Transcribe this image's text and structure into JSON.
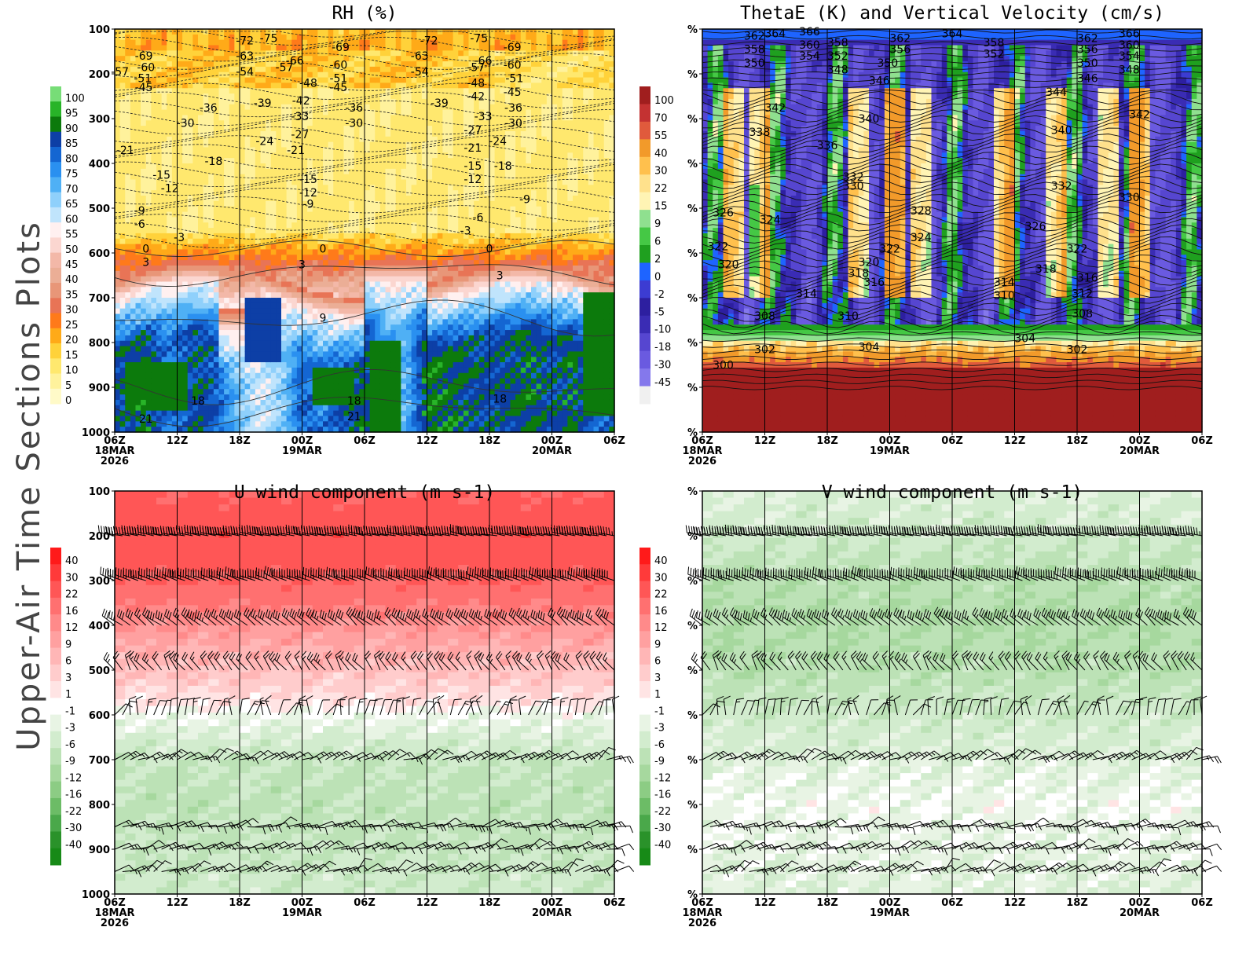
{
  "page_title": "Upper-Air Time Sections Plots",
  "chart_data": [
    {
      "id": "rh",
      "type": "heatmap",
      "title": "RH (%)",
      "shading_field": "Relative humidity (%)",
      "contour_field": "Temperature (C)",
      "y_tick_labels": [
        "100",
        "200",
        "300",
        "400",
        "500",
        "600",
        "700",
        "800",
        "900",
        "1000"
      ],
      "ylim": [
        100,
        1000
      ],
      "x_tick_labels": [
        {
          "hour": "06Z",
          "date": "18MAR",
          "year": "2026"
        },
        {
          "hour": "12Z",
          "date": "",
          "year": ""
        },
        {
          "hour": "18Z",
          "date": "",
          "year": ""
        },
        {
          "hour": "00Z",
          "date": "19MAR",
          "year": ""
        },
        {
          "hour": "06Z",
          "date": "",
          "year": ""
        },
        {
          "hour": "12Z",
          "date": "",
          "year": ""
        },
        {
          "hour": "18Z",
          "date": "",
          "year": ""
        },
        {
          "hour": "00Z",
          "date": "20MAR",
          "year": ""
        },
        {
          "hour": "06Z",
          "date": "",
          "year": ""
        }
      ],
      "xlim_hours": [
        0,
        48
      ],
      "colorbar_labels": [
        "100",
        "95",
        "90",
        "85",
        "80",
        "75",
        "70",
        "65",
        "60",
        "55",
        "50",
        "45",
        "40",
        "35",
        "30",
        "25",
        "20",
        "15",
        "10",
        "5",
        "0"
      ],
      "colorbar_colors": [
        "#77dd77",
        "#28b428",
        "#0c7a0c",
        "#0d3fa6",
        "#1466d2",
        "#2a90f0",
        "#4fb0f5",
        "#8fd0fb",
        "#c0e4fc",
        "#fff0f0",
        "#fbd6d0",
        "#f3b8a8",
        "#ebae96",
        "#e89678",
        "#e87456",
        "#ff7a1a",
        "#ffaa18",
        "#ffd23a",
        "#ffe86e",
        "#fff29c",
        "#fffac8"
      ],
      "temperature_contours": [
        -75,
        -72,
        -69,
        -66,
        -63,
        -60,
        -57,
        -54,
        -51,
        -48,
        -45,
        -42,
        -39,
        -36,
        -33,
        -30,
        -27,
        -24,
        -21,
        -18,
        -15,
        -12,
        -9,
        -6,
        -3,
        0,
        3,
        9,
        18,
        21
      ],
      "contour_labels": [
        {
          "text": "-69",
          "hour": 2.8,
          "p": 160
        },
        {
          "text": "-60",
          "hour": 3.0,
          "p": 185
        },
        {
          "text": "-57",
          "hour": 0.5,
          "p": 195
        },
        {
          "text": "-51",
          "hour": 2.7,
          "p": 210
        },
        {
          "text": "-45",
          "hour": 2.8,
          "p": 230
        },
        {
          "text": "-72",
          "hour": 12.5,
          "p": 125
        },
        {
          "text": "-75",
          "hour": 14.8,
          "p": 120
        },
        {
          "text": "-63",
          "hour": 12.5,
          "p": 160
        },
        {
          "text": "-54",
          "hour": 12.5,
          "p": 195
        },
        {
          "text": "-66",
          "hour": 17.3,
          "p": 170
        },
        {
          "text": "-57",
          "hour": 16.3,
          "p": 185
        },
        {
          "text": "-69",
          "hour": 21.7,
          "p": 140
        },
        {
          "text": "-60",
          "hour": 21.5,
          "p": 180
        },
        {
          "text": "-51",
          "hour": 21.5,
          "p": 210
        },
        {
          "text": "-45",
          "hour": 21.5,
          "p": 230
        },
        {
          "text": "-48",
          "hour": 18.6,
          "p": 220
        },
        {
          "text": "-42",
          "hour": 17.9,
          "p": 260
        },
        {
          "text": "-72",
          "hour": 30.2,
          "p": 125
        },
        {
          "text": "-63",
          "hour": 29.3,
          "p": 160
        },
        {
          "text": "-54",
          "hour": 29.3,
          "p": 195
        },
        {
          "text": "-75",
          "hour": 35.0,
          "p": 120
        },
        {
          "text": "-66",
          "hour": 35.4,
          "p": 170
        },
        {
          "text": "-57",
          "hour": 34.7,
          "p": 185
        },
        {
          "text": "-48",
          "hour": 34.7,
          "p": 220
        },
        {
          "text": "-42",
          "hour": 34.7,
          "p": 250
        },
        {
          "text": "-69",
          "hour": 38.2,
          "p": 140
        },
        {
          "text": "-60",
          "hour": 38.2,
          "p": 180
        },
        {
          "text": "-51",
          "hour": 38.4,
          "p": 210
        },
        {
          "text": "-45",
          "hour": 38.2,
          "p": 240
        },
        {
          "text": "-36",
          "hour": 9.0,
          "p": 275
        },
        {
          "text": "-30",
          "hour": 6.8,
          "p": 310
        },
        {
          "text": "-39",
          "hour": 14.2,
          "p": 265
        },
        {
          "text": "-33",
          "hour": 17.8,
          "p": 295
        },
        {
          "text": "-36",
          "hour": 23.0,
          "p": 275
        },
        {
          "text": "-30",
          "hour": 23.0,
          "p": 310
        },
        {
          "text": "-39",
          "hour": 31.2,
          "p": 265
        },
        {
          "text": "-33",
          "hour": 35.4,
          "p": 295
        },
        {
          "text": "-36",
          "hour": 38.3,
          "p": 275
        },
        {
          "text": "-30",
          "hour": 38.3,
          "p": 310
        },
        {
          "text": "-27",
          "hour": 34.4,
          "p": 325
        },
        {
          "text": "-24",
          "hour": 36.8,
          "p": 350
        },
        {
          "text": "-21",
          "hour": 34.4,
          "p": 365
        },
        {
          "text": "-18",
          "hour": 37.3,
          "p": 405
        },
        {
          "text": "-15",
          "hour": 34.4,
          "p": 405
        },
        {
          "text": "-12",
          "hour": 34.4,
          "p": 435
        },
        {
          "text": "-27",
          "hour": 17.8,
          "p": 335
        },
        {
          "text": "-24",
          "hour": 14.4,
          "p": 350
        },
        {
          "text": "-21",
          "hour": 17.4,
          "p": 370
        },
        {
          "text": "-15",
          "hour": 18.6,
          "p": 435
        },
        {
          "text": "-12",
          "hour": 18.6,
          "p": 465
        },
        {
          "text": "-9",
          "hour": 18.6,
          "p": 490
        },
        {
          "text": "-21",
          "hour": 1.0,
          "p": 370
        },
        {
          "text": "-18",
          "hour": 9.5,
          "p": 395
        },
        {
          "text": "-15",
          "hour": 4.5,
          "p": 425
        },
        {
          "text": "-12",
          "hour": 5.3,
          "p": 455
        },
        {
          "text": "-9",
          "hour": 2.4,
          "p": 505
        },
        {
          "text": "-6",
          "hour": 2.4,
          "p": 535
        },
        {
          "text": "-9",
          "hour": 39.4,
          "p": 480
        },
        {
          "text": "-6",
          "hour": 34.9,
          "p": 520
        },
        {
          "text": "-3",
          "hour": 33.7,
          "p": 550
        },
        {
          "text": "-3",
          "hour": 6.2,
          "p": 565
        },
        {
          "text": "0",
          "hour": 3.0,
          "p": 590
        },
        {
          "text": "0",
          "hour": 20.0,
          "p": 590
        },
        {
          "text": "0",
          "hour": 36.0,
          "p": 590
        },
        {
          "text": "3",
          "hour": 3.0,
          "p": 620
        },
        {
          "text": "3",
          "hour": 18.0,
          "p": 625
        },
        {
          "text": "3",
          "hour": 37.0,
          "p": 650
        },
        {
          "text": "9",
          "hour": 20.0,
          "p": 745
        },
        {
          "text": "18",
          "hour": 8.0,
          "p": 930
        },
        {
          "text": "18",
          "hour": 23.0,
          "p": 930
        },
        {
          "text": "21",
          "hour": 3.0,
          "p": 970
        },
        {
          "text": "21",
          "hour": 23.0,
          "p": 965
        },
        {
          "text": "18",
          "hour": 37.0,
          "p": 925
        }
      ]
    },
    {
      "id": "thetae",
      "type": "heatmap",
      "title": "ThetaE (K) and Vertical Velocity (cm/s)",
      "shading_field": "Vertical velocity (cm/s)",
      "contour_field": "Equivalent potential temperature (K)",
      "y_tick_labels": [
        "%",
        "%",
        "%",
        "%",
        "%",
        "%",
        "%",
        "%",
        "%",
        "%"
      ],
      "colorbar_labels": [
        "100",
        "70",
        "55",
        "40",
        "30",
        "22",
        "15",
        "9",
        "6",
        "2",
        "0",
        "-2",
        "-5",
        "-10",
        "-18",
        "-30",
        "-45"
      ],
      "colorbar_colors": [
        "#a01e1e",
        "#c43232",
        "#e05a3c",
        "#f29a2a",
        "#ffc04d",
        "#ffe18c",
        "#fff4b4",
        "#8fe08f",
        "#45c845",
        "#1fa01f",
        "#1e64ff",
        "#3c3cd2",
        "#2d1fa0",
        "#3a2cb4",
        "#5646d0",
        "#6a5ae0",
        "#8478ec",
        "#f0f0f0"
      ],
      "thetae_contours": [
        300,
        302,
        304,
        308,
        310,
        312,
        314,
        316,
        318,
        320,
        322,
        324,
        326,
        328,
        330,
        332,
        336,
        338,
        340,
        342,
        344,
        346,
        348,
        350,
        352,
        354,
        356,
        358,
        360,
        362,
        364,
        366
      ],
      "contour_labels": [
        {
          "text": "362",
          "hour": 5.0,
          "p": 115
        },
        {
          "text": "358",
          "hour": 5.0,
          "p": 145
        },
        {
          "text": "350",
          "hour": 5.0,
          "p": 175
        },
        {
          "text": "364",
          "hour": 7.0,
          "p": 110
        },
        {
          "text": "366",
          "hour": 10.3,
          "p": 105
        },
        {
          "text": "360",
          "hour": 10.3,
          "p": 135
        },
        {
          "text": "354",
          "hour": 10.3,
          "p": 160
        },
        {
          "text": "358",
          "hour": 13.0,
          "p": 130
        },
        {
          "text": "352",
          "hour": 13.0,
          "p": 160
        },
        {
          "text": "348",
          "hour": 13.0,
          "p": 190
        },
        {
          "text": "346",
          "hour": 17.0,
          "p": 215
        },
        {
          "text": "350",
          "hour": 17.8,
          "p": 175
        },
        {
          "text": "362",
          "hour": 19.0,
          "p": 120
        },
        {
          "text": "356",
          "hour": 19.0,
          "p": 145
        },
        {
          "text": "364",
          "hour": 24.0,
          "p": 110
        },
        {
          "text": "358",
          "hour": 28.0,
          "p": 130
        },
        {
          "text": "352",
          "hour": 28.0,
          "p": 155
        },
        {
          "text": "362",
          "hour": 37.0,
          "p": 120
        },
        {
          "text": "356",
          "hour": 37.0,
          "p": 145
        },
        {
          "text": "350",
          "hour": 37.0,
          "p": 175
        },
        {
          "text": "366",
          "hour": 41.0,
          "p": 110
        },
        {
          "text": "360",
          "hour": 41.0,
          "p": 135
        },
        {
          "text": "354",
          "hour": 41.0,
          "p": 160
        },
        {
          "text": "348",
          "hour": 41.0,
          "p": 190
        },
        {
          "text": "346",
          "hour": 37.0,
          "p": 210
        },
        {
          "text": "344",
          "hour": 34.0,
          "p": 240
        },
        {
          "text": "342",
          "hour": 7.0,
          "p": 275
        },
        {
          "text": "338",
          "hour": 5.5,
          "p": 330
        },
        {
          "text": "340",
          "hour": 16.0,
          "p": 300
        },
        {
          "text": "342",
          "hour": 42.0,
          "p": 290
        },
        {
          "text": "340",
          "hour": 34.5,
          "p": 325
        },
        {
          "text": "336",
          "hour": 12.0,
          "p": 360
        },
        {
          "text": "332",
          "hour": 14.5,
          "p": 430
        },
        {
          "text": "330",
          "hour": 14.5,
          "p": 450
        },
        {
          "text": "332",
          "hour": 34.5,
          "p": 450
        },
        {
          "text": "330",
          "hour": 41.0,
          "p": 475
        },
        {
          "text": "328",
          "hour": 21.0,
          "p": 505
        },
        {
          "text": "326",
          "hour": 2.0,
          "p": 510
        },
        {
          "text": "324",
          "hour": 6.5,
          "p": 525
        },
        {
          "text": "326",
          "hour": 32.0,
          "p": 540
        },
        {
          "text": "324",
          "hour": 21.0,
          "p": 565
        },
        {
          "text": "322",
          "hour": 1.5,
          "p": 585
        },
        {
          "text": "322",
          "hour": 18.0,
          "p": 590
        },
        {
          "text": "322",
          "hour": 36.0,
          "p": 590
        },
        {
          "text": "320",
          "hour": 2.5,
          "p": 625
        },
        {
          "text": "320",
          "hour": 16.0,
          "p": 620
        },
        {
          "text": "318",
          "hour": 15.0,
          "p": 645
        },
        {
          "text": "316",
          "hour": 16.5,
          "p": 665
        },
        {
          "text": "318",
          "hour": 33.0,
          "p": 635
        },
        {
          "text": "316",
          "hour": 37.0,
          "p": 655
        },
        {
          "text": "314",
          "hour": 10.0,
          "p": 690
        },
        {
          "text": "314",
          "hour": 29.0,
          "p": 665
        },
        {
          "text": "310",
          "hour": 29.0,
          "p": 695
        },
        {
          "text": "312",
          "hour": 36.5,
          "p": 690
        },
        {
          "text": "308",
          "hour": 6.0,
          "p": 740
        },
        {
          "text": "310",
          "hour": 14.0,
          "p": 740
        },
        {
          "text": "308",
          "hour": 36.5,
          "p": 735
        },
        {
          "text": "304",
          "hour": 31.0,
          "p": 790
        },
        {
          "text": "304",
          "hour": 16.0,
          "p": 810
        },
        {
          "text": "302",
          "hour": 6.0,
          "p": 815
        },
        {
          "text": "302",
          "hour": 36.0,
          "p": 815
        },
        {
          "text": "300",
          "hour": 2.0,
          "p": 850
        }
      ]
    },
    {
      "id": "u",
      "type": "heatmap",
      "title": "U wind component (m s-1)",
      "shading_field": "U wind component (m s-1)",
      "overlay": "wind barbs",
      "y_tick_labels": [
        "100",
        "200",
        "300",
        "400",
        "500",
        "600",
        "700",
        "800",
        "900",
        "1000"
      ],
      "colorbar_labels": [
        "40",
        "30",
        "22",
        "16",
        "12",
        "9",
        "6",
        "3",
        "1",
        "-1",
        "-3",
        "-6",
        "-9",
        "-12",
        "-16",
        "-22",
        "-30",
        "-40"
      ],
      "colorbar_colors": [
        "#ff1a1a",
        "#ff3a3a",
        "#ff5656",
        "#ff7070",
        "#ff8a8a",
        "#ffa0a0",
        "#ffb6b6",
        "#ffcccc",
        "#ffe4e4",
        "#ffffff",
        "#e8f4e4",
        "#d2ecce",
        "#bce2b6",
        "#a6d89e",
        "#8ccc84",
        "#6cbc66",
        "#4aa84a",
        "#2a922a",
        "#178a17"
      ],
      "u_profile": [
        {
          "p": 100,
          "u": 22
        },
        {
          "p": 200,
          "u": 28
        },
        {
          "p": 300,
          "u": 22
        },
        {
          "p": 400,
          "u": 12
        },
        {
          "p": 500,
          "u": 6
        },
        {
          "p": 570,
          "u": 2
        },
        {
          "p": 600,
          "u": -1
        },
        {
          "p": 700,
          "u": -6
        },
        {
          "p": 800,
          "u": -7
        },
        {
          "p": 900,
          "u": -6
        },
        {
          "p": 1000,
          "u": -5
        }
      ],
      "barb_levels": [
        200,
        300,
        400,
        500,
        600,
        700,
        850,
        900,
        950
      ]
    },
    {
      "id": "v",
      "type": "heatmap",
      "title": "V wind component (m s-1)",
      "shading_field": "V wind component (m s-1)",
      "overlay": "wind barbs",
      "y_tick_labels": [
        "%",
        "%",
        "%",
        "%",
        "%",
        "%",
        "%",
        "%",
        "%",
        "%"
      ],
      "colorbar_labels": [
        "40",
        "30",
        "22",
        "16",
        "12",
        "9",
        "6",
        "3",
        "1",
        "-1",
        "-3",
        "-6",
        "-9",
        "-12",
        "-16",
        "-22",
        "-30",
        "-40"
      ],
      "colorbar_colors": [
        "#ff1a1a",
        "#ff3a3a",
        "#ff5656",
        "#ff7070",
        "#ff8a8a",
        "#ffa0a0",
        "#ffb6b6",
        "#ffcccc",
        "#ffe4e4",
        "#ffffff",
        "#e8f4e4",
        "#d2ecce",
        "#bce2b6",
        "#a6d89e",
        "#8ccc84",
        "#6cbc66",
        "#4aa84a",
        "#2a922a",
        "#178a17"
      ],
      "v_profile": [
        {
          "p": 100,
          "v": -3
        },
        {
          "p": 200,
          "v": -5
        },
        {
          "p": 300,
          "v": -8
        },
        {
          "p": 400,
          "v": -9
        },
        {
          "p": 500,
          "v": -8
        },
        {
          "p": 600,
          "v": -5
        },
        {
          "p": 700,
          "v": -3
        },
        {
          "p": 800,
          "v": -1
        },
        {
          "p": 900,
          "v": -2
        },
        {
          "p": 1000,
          "v": -3
        }
      ],
      "barb_levels": [
        200,
        300,
        400,
        500,
        600,
        700,
        850,
        900,
        950
      ]
    }
  ]
}
